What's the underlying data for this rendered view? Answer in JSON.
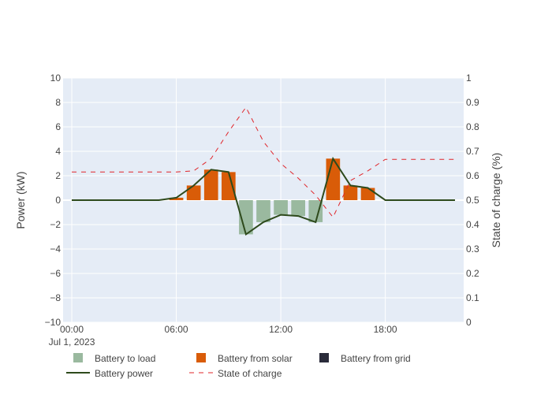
{
  "chart_data": {
    "type": "bar",
    "title": "",
    "x": [
      "00:00",
      "01:00",
      "02:00",
      "03:00",
      "04:00",
      "05:00",
      "06:00",
      "07:00",
      "08:00",
      "09:00",
      "10:00",
      "11:00",
      "12:00",
      "13:00",
      "14:00",
      "15:00",
      "16:00",
      "17:00",
      "18:00",
      "19:00",
      "20:00",
      "21:00",
      "22:00"
    ],
    "x_tick_labels": [
      "00:00",
      "06:00",
      "12:00",
      "18:00"
    ],
    "x_date_label": "Jul 1, 2023",
    "ylabel": "Power (kW)",
    "y2label": "State of charge (%)",
    "ylim": [
      -10,
      10
    ],
    "y_ticks": [
      "−10",
      "−8",
      "−6",
      "−4",
      "−2",
      "0",
      "2",
      "4",
      "6",
      "8",
      "10"
    ],
    "y2lim": [
      0,
      1
    ],
    "y2_ticks": [
      "0",
      "0.1",
      "0.2",
      "0.3",
      "0.4",
      "0.5",
      "0.6",
      "0.7",
      "0.8",
      "0.9",
      "1"
    ],
    "barmode": "relative",
    "grid": true,
    "legend_position": "bottom",
    "series": [
      {
        "name": "Battery to load",
        "kind": "bar",
        "axis": "y",
        "color": "#9ab99f",
        "values": [
          0,
          0,
          0,
          0,
          0,
          0,
          0,
          0,
          0,
          0,
          -2.8,
          -1.8,
          -1.2,
          -1.3,
          -1.8,
          0,
          0,
          0,
          0,
          0,
          0,
          0,
          0
        ]
      },
      {
        "name": "Battery from solar",
        "kind": "bar",
        "axis": "y",
        "color": "#d95c08",
        "values": [
          0,
          0,
          0,
          0,
          0,
          0,
          0.2,
          1.2,
          2.5,
          2.3,
          0,
          0,
          0,
          0,
          0,
          3.4,
          1.2,
          1.0,
          0,
          0,
          0,
          0,
          0
        ]
      },
      {
        "name": "Battery from grid",
        "kind": "bar",
        "axis": "y",
        "color": "#2a2b3a",
        "values": [
          0,
          0,
          0,
          0,
          0,
          0,
          0,
          0,
          0,
          0,
          0,
          0,
          0,
          0,
          0,
          0,
          0,
          0,
          0,
          0,
          0,
          0,
          0
        ]
      },
      {
        "name": "Battery power",
        "kind": "line",
        "axis": "y",
        "color": "#2e4a1c",
        "values": [
          0,
          0,
          0,
          0,
          0,
          0,
          0.2,
          1.2,
          2.5,
          2.3,
          -2.8,
          -1.8,
          -1.2,
          -1.3,
          -1.8,
          3.4,
          1.2,
          1.0,
          0,
          0,
          0,
          0,
          0
        ]
      },
      {
        "name": "State of charge",
        "kind": "dash-line",
        "axis": "y2",
        "color": "#e0252a",
        "values": [
          0.615,
          0.615,
          0.615,
          0.615,
          0.615,
          0.615,
          0.615,
          0.62,
          0.67,
          0.78,
          0.88,
          0.74,
          0.65,
          0.59,
          0.52,
          0.43,
          0.58,
          0.62,
          0.667,
          0.667,
          0.667,
          0.667,
          0.667
        ]
      }
    ]
  }
}
